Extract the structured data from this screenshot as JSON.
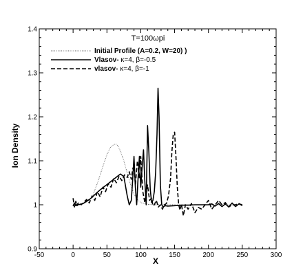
{
  "chart_data": {
    "type": "line",
    "title": "T=100ωpi",
    "xlabel": "X",
    "ylabel": "Ion Density",
    "xlim": [
      -50,
      300
    ],
    "ylim": [
      0.9,
      1.4
    ],
    "x_ticks": [
      -50,
      0,
      50,
      100,
      150,
      200,
      250,
      300
    ],
    "y_ticks": [
      0.9,
      1,
      1.1,
      1.2,
      1.3,
      1.4
    ],
    "x_tick_labels": [
      "-50",
      "0",
      "50",
      "100",
      "150",
      "200",
      "250",
      "300"
    ],
    "y_tick_labels": [
      "0.9",
      "1",
      "1.1",
      "1.2",
      "1.3",
      "1.4"
    ],
    "grid": false,
    "legend_position": "top-left",
    "series": [
      {
        "name": "Initial Profile (A=0.2, W=20) )",
        "legend_name": "Initial Profile (A=0.2, W=20) )",
        "legend_suffix": "",
        "style": "dotted",
        "color": "#555555",
        "x": [
          0,
          10,
          20,
          25,
          30,
          35,
          40,
          45,
          50,
          55,
          60,
          63,
          66,
          70,
          75,
          80,
          85,
          90,
          95,
          100,
          110,
          120,
          130,
          150,
          200,
          250
        ],
        "y": [
          1.0,
          1.001,
          1.006,
          1.012,
          1.025,
          1.045,
          1.068,
          1.092,
          1.114,
          1.13,
          1.137,
          1.138,
          1.135,
          1.122,
          1.1,
          1.072,
          1.045,
          1.025,
          1.012,
          1.005,
          1.001,
          1.0,
          1.0,
          1.0,
          1.0,
          1.0
        ]
      },
      {
        "name": "Vlasov- κ=4, β=-0.5",
        "legend_name": "Vlasov-",
        "legend_suffix": " κ=4, β=-0.5",
        "style": "solid",
        "color": "#000000",
        "x": [
          0,
          2,
          4,
          6,
          8,
          10,
          15,
          20,
          25,
          30,
          35,
          40,
          45,
          50,
          55,
          60,
          65,
          70,
          75,
          80,
          83,
          86,
          88,
          90,
          92,
          94,
          96,
          98,
          100,
          102,
          104,
          106,
          108,
          110,
          112,
          114,
          116,
          118,
          120,
          122,
          124,
          125.5,
          127,
          129,
          131,
          133,
          136,
          140,
          150,
          160,
          170,
          180,
          190,
          200,
          205,
          210,
          215,
          220,
          225,
          230,
          235,
          240,
          245,
          250
        ],
        "y": [
          0.997,
          1.004,
          0.998,
          1.002,
          1.0,
          1.001,
          1.003,
          1.008,
          1.013,
          1.02,
          1.027,
          1.034,
          1.04,
          1.046,
          1.052,
          1.058,
          1.064,
          1.07,
          1.064,
          1.02,
          1.0,
          1.01,
          1.055,
          1.11,
          1.04,
          1.0,
          1.06,
          1.11,
          1.04,
          1.085,
          1.125,
          1.055,
          1.0,
          1.18,
          1.12,
          1.035,
          1.005,
          1.01,
          1.03,
          1.075,
          1.16,
          1.265,
          1.2,
          1.045,
          1.0,
          0.995,
          0.998,
          0.997,
          0.998,
          0.999,
          0.999,
          1.0,
          1.0,
          1.0,
          1.002,
          0.997,
          1.003,
          0.996,
          1.002,
          0.995,
          1.004,
          0.996,
          1.002,
          1.0
        ]
      },
      {
        "name": "vlasov- κ=4, β=-1",
        "legend_name": "vlasov-",
        "legend_suffix": " κ=4, β=-1",
        "style": "dashed",
        "color": "#000000",
        "x": [
          0,
          2,
          4,
          6,
          8,
          12,
          16,
          20,
          24,
          28,
          32,
          36,
          40,
          44,
          48,
          52,
          56,
          60,
          64,
          68,
          72,
          76,
          80,
          83,
          86,
          88,
          90,
          92,
          95,
          98,
          100,
          103,
          106,
          110,
          113,
          116,
          118,
          120,
          123,
          126,
          129,
          132,
          135,
          138,
          141,
          144,
          146,
          148,
          150,
          152,
          154,
          156,
          158,
          160,
          163,
          166,
          170,
          175,
          180,
          185,
          190,
          195,
          200,
          205,
          210,
          215,
          220,
          225,
          230,
          235,
          240,
          245,
          250
        ],
        "y": [
          1.015,
          0.995,
          1.008,
          0.998,
          1.005,
          1.0,
          1.006,
          1.012,
          1.004,
          1.02,
          1.01,
          1.03,
          1.018,
          1.04,
          1.03,
          1.048,
          1.04,
          1.06,
          1.05,
          1.065,
          1.055,
          1.068,
          1.062,
          1.075,
          1.058,
          1.08,
          1.09,
          1.045,
          1.1,
          1.06,
          1.11,
          1.03,
          1.005,
          1.045,
          1.01,
          1.015,
          0.998,
          1.0,
          1.01,
          0.995,
          1.0,
          0.99,
          1.0,
          1.003,
          1.02,
          1.06,
          1.12,
          1.16,
          1.165,
          1.11,
          1.04,
          1.0,
          0.988,
          1.002,
          0.975,
          1.0,
          0.99,
          1.003,
          0.982,
          0.994,
          0.99,
          1.0,
          1.01,
          0.99,
          1.0,
          1.01,
          1.0,
          1.005,
          0.995,
          1.0,
          1.0,
          1.003,
          0.998
        ]
      }
    ]
  }
}
